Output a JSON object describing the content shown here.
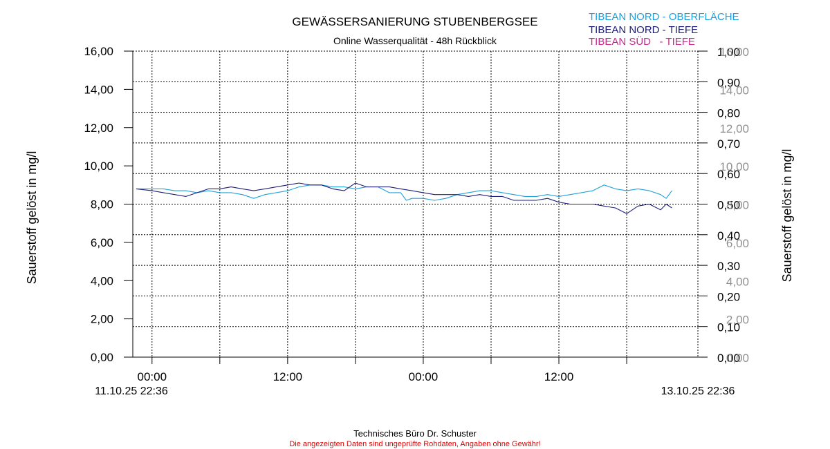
{
  "chart_data": {
    "type": "line",
    "title": "GEWÄSSERSANIERUNG STUBENBERGSEE",
    "subtitle": "Online Wasserqualität - 48h Rückblick",
    "ylabel_left": "Sauerstoff gelöst in mg/l",
    "ylabel_right": "Sauerstoff gelöst in mg/l",
    "ylim_left": [
      0,
      16
    ],
    "y_ticks_left": [
      "0,00",
      "2,00",
      "4,00",
      "6,00",
      "8,00",
      "10,00",
      "12,00",
      "14,00",
      "16,00"
    ],
    "ylim_right_a": [
      0,
      1
    ],
    "y_ticks_right_a": [
      "0,00",
      "0,10",
      "0,20",
      "0,30",
      "0,40",
      "0,50",
      "0,60",
      "0,70",
      "0,80",
      "0,90",
      "1,00"
    ],
    "y_ticks_right_b": [
      "0,00",
      "2,00",
      "4,00",
      "6,00",
      "8,00",
      "10,00",
      "12,00",
      "14,00",
      "16,00"
    ],
    "x_range_hours": [
      -1.7,
      48.3
    ],
    "x_ticks": [
      {
        "hour": 0,
        "label": "00:00"
      },
      {
        "hour": 12,
        "label": "12:00"
      },
      {
        "hour": 24,
        "label": "00:00"
      },
      {
        "hour": 36,
        "label": "12:00"
      }
    ],
    "x_minor_hours": [
      6,
      18,
      30,
      42
    ],
    "start_label": "11.10.25 22:36",
    "end_label": "13.10.25 22:36",
    "grid": true,
    "legend_position": "top-right",
    "series": [
      {
        "name": "TIBEAN NORD - OBERFLÄCHE",
        "color": "#1ea0dc",
        "x": [
          -1.4,
          0,
          1,
          2,
          3,
          4,
          5,
          6,
          7,
          8,
          9,
          10,
          11,
          12,
          13,
          14,
          15,
          16,
          17,
          18,
          19,
          20,
          21,
          22,
          22.5,
          23,
          24,
          25,
          26,
          27,
          28,
          29,
          30,
          31,
          32,
          33,
          34,
          35,
          36,
          37,
          38,
          39,
          40,
          41,
          42,
          43,
          44,
          45,
          45.5,
          46
        ],
        "y": [
          8.8,
          8.8,
          8.8,
          8.7,
          8.7,
          8.6,
          8.7,
          8.6,
          8.6,
          8.5,
          8.3,
          8.5,
          8.6,
          8.7,
          8.9,
          9.0,
          9.0,
          8.9,
          8.9,
          8.8,
          8.9,
          8.9,
          8.6,
          8.6,
          8.2,
          8.3,
          8.3,
          8.2,
          8.3,
          8.5,
          8.6,
          8.7,
          8.7,
          8.6,
          8.5,
          8.4,
          8.4,
          8.5,
          8.4,
          8.5,
          8.6,
          8.7,
          9.0,
          8.8,
          8.7,
          8.8,
          8.7,
          8.5,
          8.3,
          8.7
        ]
      },
      {
        "name": "TIBEAN NORD - TIEFE",
        "color": "#1e1e78",
        "x": [
          -1.4,
          0,
          1,
          2,
          3,
          4,
          5,
          6,
          7,
          8,
          9,
          10,
          11,
          12,
          13,
          14,
          15,
          16,
          17,
          18,
          19,
          20,
          21,
          22,
          23,
          24,
          25,
          26,
          27,
          28,
          29,
          30,
          31,
          32,
          33,
          34,
          35,
          36,
          37,
          38,
          39,
          40,
          41,
          42,
          43,
          44,
          45,
          45.5,
          46
        ],
        "y": [
          8.8,
          8.7,
          8.6,
          8.5,
          8.4,
          8.6,
          8.8,
          8.8,
          8.9,
          8.8,
          8.7,
          8.8,
          8.9,
          9.0,
          9.1,
          9.0,
          9.0,
          8.8,
          8.7,
          9.1,
          8.9,
          8.9,
          8.9,
          8.8,
          8.7,
          8.6,
          8.5,
          8.5,
          8.5,
          8.4,
          8.5,
          8.4,
          8.4,
          8.2,
          8.2,
          8.2,
          8.3,
          8.1,
          8.0,
          8.0,
          8.0,
          7.9,
          7.8,
          7.5,
          7.9,
          8.0,
          7.7,
          8.0,
          7.8
        ]
      },
      {
        "name": "TIBEAN SÜD   - TIEFE",
        "color": "#c8288c",
        "x": [],
        "y": []
      }
    ]
  },
  "footer": {
    "credit": "Technisches Büro Dr. Schuster",
    "disclaimer": "Die angezeigten Daten sind ungeprüfte Rohdaten, Angaben ohne Gewähr!"
  }
}
